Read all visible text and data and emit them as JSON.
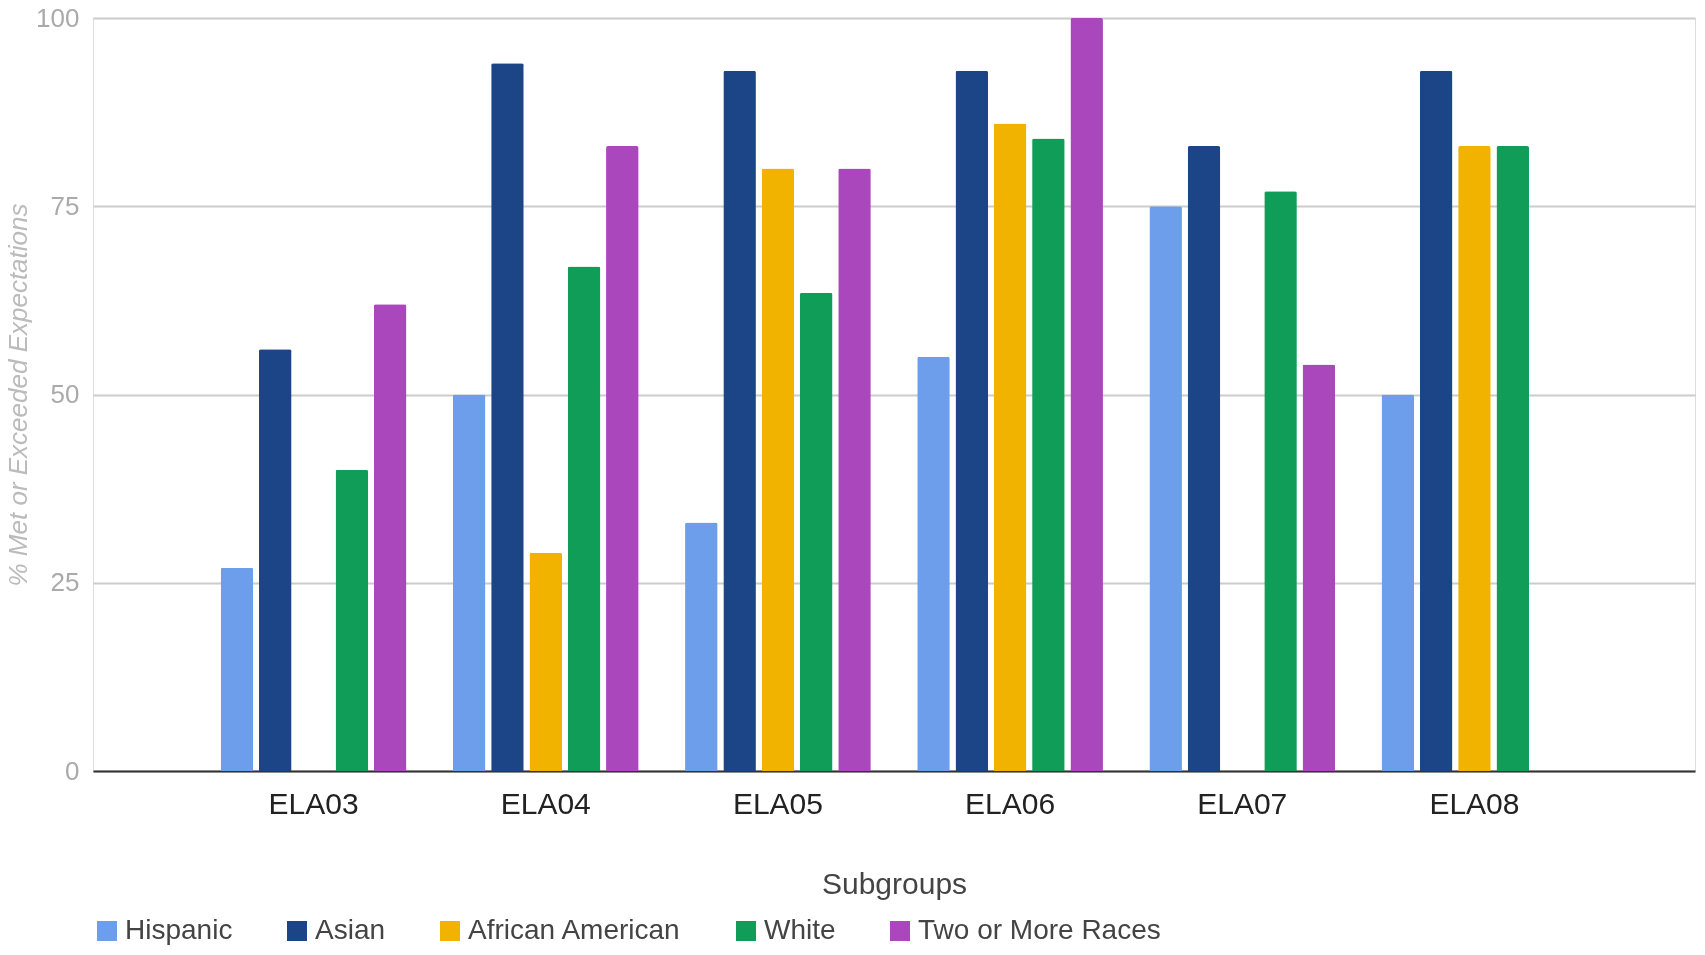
{
  "chart_data": {
    "type": "bar",
    "xlabel": "Subgroups",
    "ylabel": "% Met or Exceeded Expectations",
    "categories": [
      "ELA03",
      "ELA04",
      "ELA05",
      "ELA06",
      "ELA07",
      "ELA08"
    ],
    "series": [
      {
        "name": "Hispanic",
        "color": "#6d9eeb",
        "values": [
          27,
          50,
          33,
          55,
          75,
          50
        ]
      },
      {
        "name": "Asian",
        "color": "#1c4587",
        "values": [
          56,
          94,
          93,
          93,
          83,
          93
        ]
      },
      {
        "name": "African American",
        "color": "#f1b300",
        "values": [
          null,
          29,
          80,
          86,
          null,
          83
        ]
      },
      {
        "name": "White",
        "color": "#0f9d58",
        "values": [
          40,
          67,
          63.5,
          84,
          77,
          83
        ]
      },
      {
        "name": "Two or More Races",
        "color": "#ab47bc",
        "values": [
          62,
          83,
          80,
          100,
          54,
          null
        ]
      }
    ],
    "ylim": [
      0,
      100
    ],
    "yticks": [
      0,
      25,
      50,
      75,
      100
    ],
    "grid": "y",
    "legend": "bottom"
  }
}
